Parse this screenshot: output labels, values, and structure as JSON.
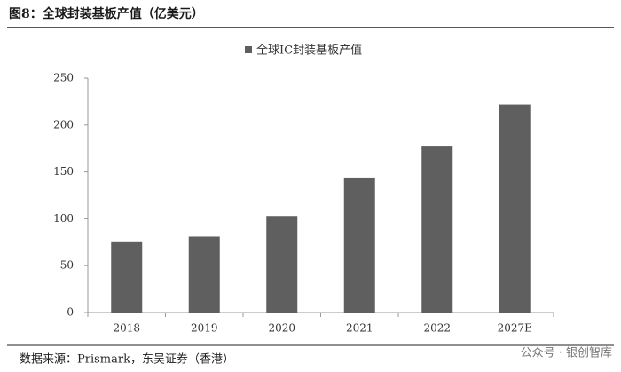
{
  "chart_data": {
    "type": "bar",
    "title": "图8：全球封装基板产值（亿美元）",
    "series": [
      {
        "name": "全球IC封装基板产值",
        "color": "#5f5f5f",
        "values": [
          75,
          81,
          103,
          144,
          177,
          222
        ]
      }
    ],
    "categories": [
      "2018",
      "2019",
      "2020",
      "2021",
      "2022",
      "2027E"
    ],
    "ylim": [
      0,
      250
    ],
    "yticks": [
      0,
      50,
      100,
      150,
      200,
      250
    ],
    "grid": false,
    "source": "数据来源：Prismark，东吴证券（香港）",
    "watermark": "公众号 · 银创智库"
  }
}
